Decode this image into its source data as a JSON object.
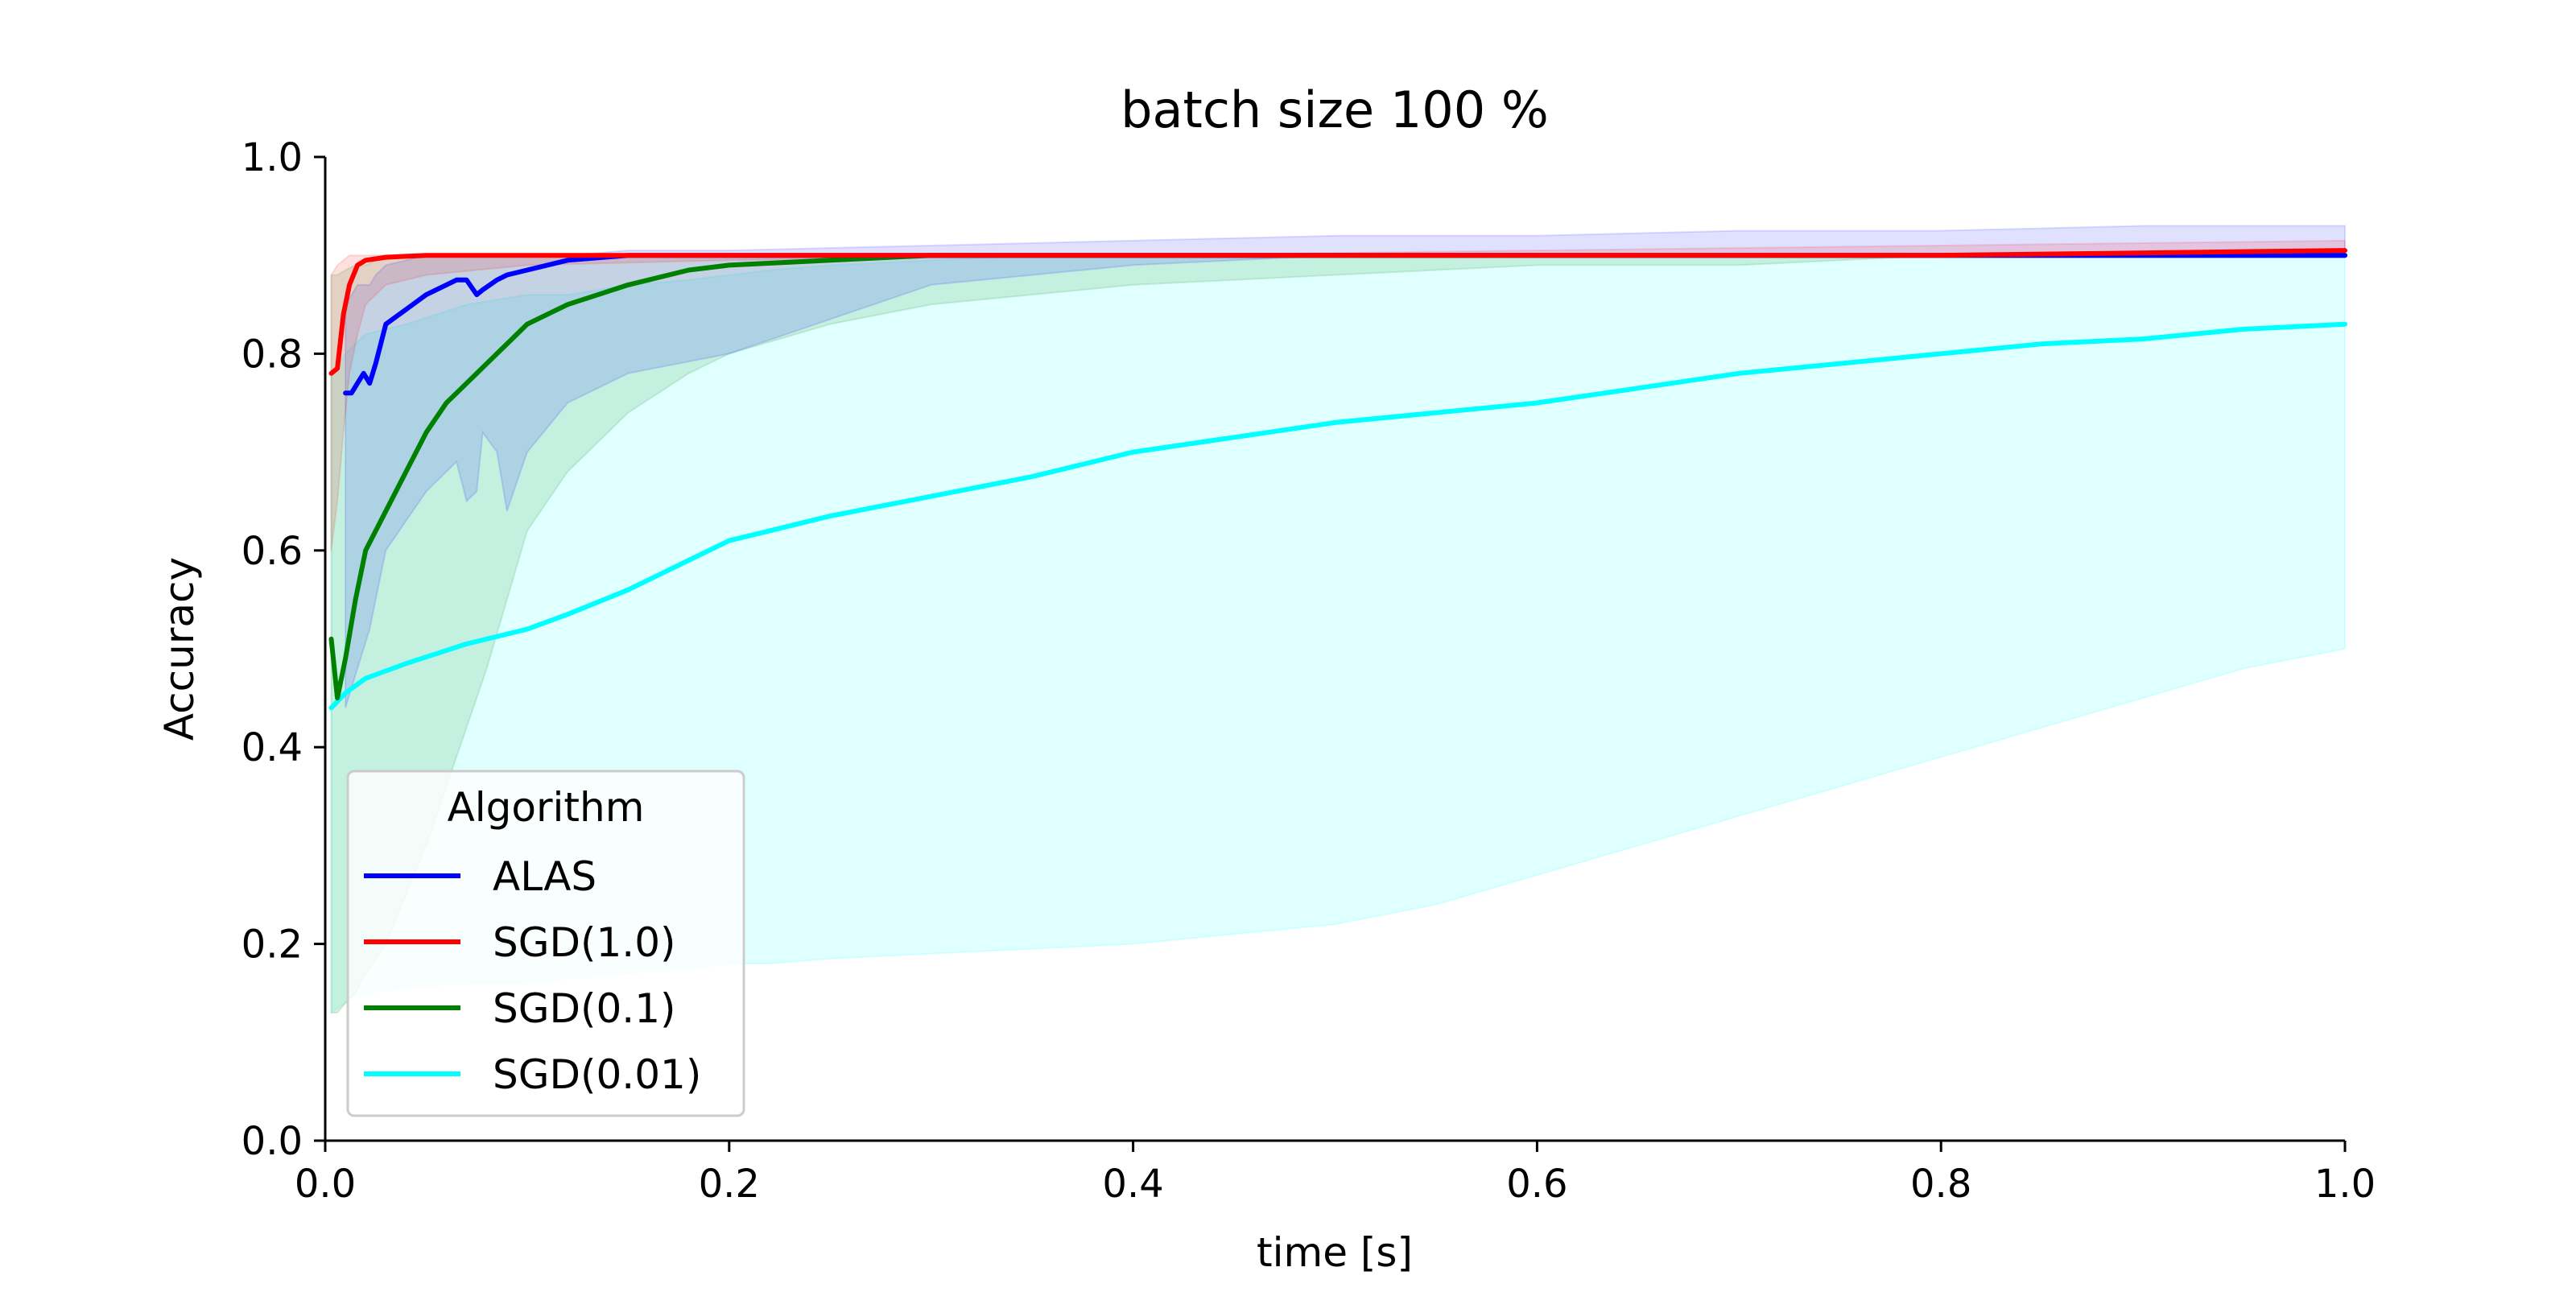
{
  "chart_data": {
    "type": "line",
    "title": "batch size 100 %",
    "xlabel": "time [s]",
    "ylabel": "Accuracy",
    "xlim": [
      0.0,
      1.0
    ],
    "ylim": [
      0.0,
      1.0
    ],
    "x_ticks": [
      "0.0",
      "0.2",
      "0.4",
      "0.6",
      "0.8",
      "1.0"
    ],
    "y_ticks": [
      "0.0",
      "0.2",
      "0.4",
      "0.6",
      "0.8",
      "1.0"
    ],
    "grid": false,
    "legend": {
      "title": "Algorithm",
      "placement": "lower-left"
    },
    "series": [
      {
        "name": "SGD(0.01)",
        "color": "#00ffff",
        "x": [
          0.003,
          0.01,
          0.02,
          0.04,
          0.07,
          0.1,
          0.12,
          0.15,
          0.18,
          0.2,
          0.22,
          0.25,
          0.3,
          0.35,
          0.4,
          0.45,
          0.5,
          0.55,
          0.6,
          0.65,
          0.7,
          0.75,
          0.8,
          0.85,
          0.9,
          0.95,
          1.0
        ],
        "y": [
          0.44,
          0.455,
          0.47,
          0.485,
          0.505,
          0.52,
          0.535,
          0.56,
          0.59,
          0.61,
          0.62,
          0.635,
          0.655,
          0.675,
          0.7,
          0.715,
          0.73,
          0.74,
          0.75,
          0.765,
          0.78,
          0.79,
          0.8,
          0.81,
          0.815,
          0.825,
          0.83
        ],
        "band_upper": [
          0.78,
          0.8,
          0.82,
          0.83,
          0.85,
          0.86,
          0.86,
          0.87,
          0.875,
          0.88,
          0.885,
          0.89,
          0.895,
          0.9,
          0.9,
          0.9,
          0.9,
          0.9,
          0.9,
          0.9,
          0.9,
          0.9,
          0.9,
          0.9,
          0.9,
          0.9,
          0.9
        ],
        "band_lower": [
          0.13,
          0.14,
          0.15,
          0.155,
          0.16,
          0.16,
          0.165,
          0.17,
          0.175,
          0.18,
          0.18,
          0.185,
          0.19,
          0.195,
          0.2,
          0.21,
          0.22,
          0.24,
          0.27,
          0.3,
          0.33,
          0.36,
          0.39,
          0.42,
          0.45,
          0.48,
          0.5
        ]
      },
      {
        "name": "SGD(0.1)",
        "color": "#008000",
        "x": [
          0.003,
          0.006,
          0.01,
          0.015,
          0.02,
          0.03,
          0.04,
          0.05,
          0.06,
          0.07,
          0.08,
          0.09,
          0.1,
          0.12,
          0.15,
          0.18,
          0.2,
          0.25,
          0.3,
          0.35,
          0.4,
          0.5,
          0.6,
          0.7,
          0.8,
          0.9,
          1.0
        ],
        "y": [
          0.51,
          0.45,
          0.49,
          0.55,
          0.6,
          0.64,
          0.68,
          0.72,
          0.75,
          0.77,
          0.79,
          0.81,
          0.83,
          0.85,
          0.87,
          0.885,
          0.89,
          0.895,
          0.9,
          0.9,
          0.9,
          0.9,
          0.9,
          0.9,
          0.9,
          0.9,
          0.9
        ],
        "band_upper": [
          0.88,
          0.88,
          0.885,
          0.89,
          0.89,
          0.9,
          0.9,
          0.9,
          0.9,
          0.9,
          0.9,
          0.9,
          0.9,
          0.9,
          0.9,
          0.9,
          0.9,
          0.9,
          0.9,
          0.9,
          0.9,
          0.9,
          0.9,
          0.9,
          0.9,
          0.9,
          0.9
        ],
        "band_lower": [
          0.13,
          0.13,
          0.14,
          0.15,
          0.17,
          0.2,
          0.25,
          0.3,
          0.36,
          0.42,
          0.48,
          0.55,
          0.62,
          0.68,
          0.74,
          0.78,
          0.8,
          0.83,
          0.85,
          0.86,
          0.87,
          0.88,
          0.89,
          0.89,
          0.9,
          0.9,
          0.9
        ]
      },
      {
        "name": "ALAS",
        "color": "#0000ff",
        "x": [
          0.01,
          0.013,
          0.016,
          0.019,
          0.022,
          0.025,
          0.03,
          0.04,
          0.05,
          0.06,
          0.065,
          0.07,
          0.075,
          0.078,
          0.085,
          0.09,
          0.1,
          0.12,
          0.15,
          0.2,
          0.3,
          0.4,
          0.5,
          0.6,
          0.7,
          0.8,
          0.9,
          1.0
        ],
        "y": [
          0.76,
          0.76,
          0.77,
          0.78,
          0.77,
          0.79,
          0.83,
          0.845,
          0.86,
          0.87,
          0.875,
          0.875,
          0.86,
          0.865,
          0.875,
          0.88,
          0.885,
          0.895,
          0.9,
          0.9,
          0.9,
          0.9,
          0.9,
          0.9,
          0.9,
          0.9,
          0.9,
          0.9
        ],
        "band_upper": [
          0.85,
          0.86,
          0.87,
          0.87,
          0.87,
          0.88,
          0.89,
          0.895,
          0.9,
          0.9,
          0.9,
          0.9,
          0.9,
          0.9,
          0.9,
          0.9,
          0.9,
          0.9,
          0.905,
          0.905,
          0.91,
          0.915,
          0.92,
          0.92,
          0.925,
          0.925,
          0.93,
          0.93
        ],
        "band_lower": [
          0.44,
          0.46,
          0.48,
          0.5,
          0.52,
          0.55,
          0.6,
          0.63,
          0.66,
          0.68,
          0.69,
          0.65,
          0.66,
          0.72,
          0.7,
          0.64,
          0.7,
          0.75,
          0.78,
          0.8,
          0.87,
          0.89,
          0.9,
          0.9,
          0.9,
          0.9,
          0.9,
          0.9
        ]
      },
      {
        "name": "SGD(1.0)",
        "color": "#ff0000",
        "x": [
          0.003,
          0.006,
          0.009,
          0.012,
          0.016,
          0.02,
          0.03,
          0.05,
          0.1,
          0.2,
          0.4,
          0.6,
          0.8,
          1.0
        ],
        "y": [
          0.78,
          0.785,
          0.84,
          0.87,
          0.89,
          0.895,
          0.898,
          0.9,
          0.9,
          0.9,
          0.9,
          0.9,
          0.9,
          0.905
        ],
        "band_upper": [
          0.88,
          0.89,
          0.895,
          0.9,
          0.9,
          0.9,
          0.9,
          0.9,
          0.9,
          0.9,
          0.9,
          0.905,
          0.91,
          0.915
        ],
        "band_lower": [
          0.6,
          0.65,
          0.72,
          0.78,
          0.82,
          0.85,
          0.87,
          0.88,
          0.89,
          0.895,
          0.9,
          0.9,
          0.9,
          0.9
        ]
      }
    ],
    "legend_order": [
      "ALAS",
      "SGD(1.0)",
      "SGD(0.1)",
      "SGD(0.01)"
    ]
  }
}
